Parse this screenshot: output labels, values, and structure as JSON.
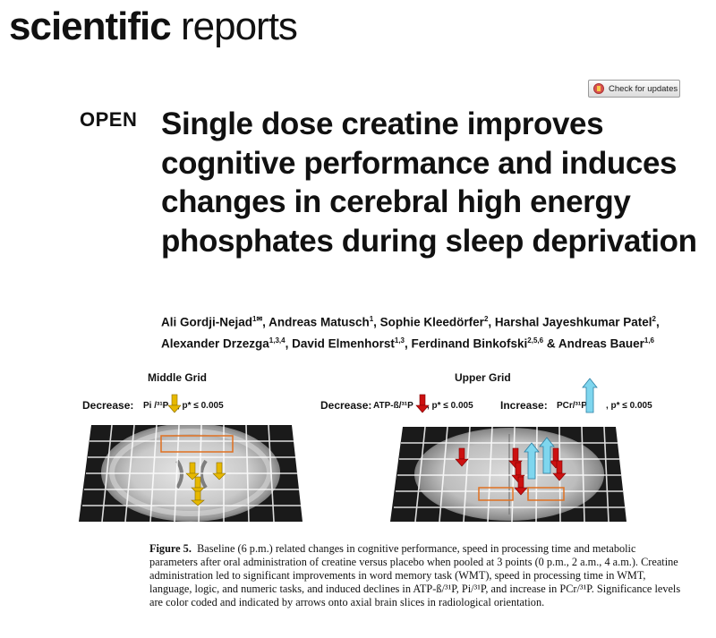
{
  "journal": {
    "bold": "scientific",
    "light": "reports"
  },
  "updates_button": "Check for updates",
  "open_label": "OPEN",
  "title": "Single dose creatine improves cognitive performance and induces changes in cerebral high energy phosphates during sleep deprivation",
  "authors": {
    "line1": [
      {
        "name": "Ali Gordji-Nejad",
        "sup": "1✉"
      },
      {
        "name": ", Andreas Matusch",
        "sup": "1"
      },
      {
        "name": ", Sophie Kleedörfer",
        "sup": "2"
      },
      {
        "name": ", Harshal Jayeshkumar Patel",
        "sup": "2"
      },
      {
        "name": ",",
        "sup": ""
      }
    ],
    "line2": [
      {
        "name": "Alexander Drzezga",
        "sup": "1,3,4"
      },
      {
        "name": ", David Elmenhorst",
        "sup": "1,3"
      },
      {
        "name": ", Ferdinand Binkofski",
        "sup": "2,5,6"
      },
      {
        "name": " & Andreas Bauer",
        "sup": "1,6"
      }
    ]
  },
  "figure": {
    "left_panel": {
      "heading": "Middle Grid",
      "label_decrease": "Decrease:",
      "metabolite": "Pi /³¹P",
      "pvalue": ",  p* ≤ 0.005"
    },
    "right_panel": {
      "heading": "Upper Grid",
      "label_decrease": "Decrease:",
      "metabolite_decrease": "ATP-ß/³¹P",
      "pvalue_decrease": ",  p* ≤ 0.005",
      "label_increase": "Increase:",
      "metabolite_increase": "PCr/³¹P",
      "pvalue_increase": ",  p* ≤ 0.005"
    },
    "colors": {
      "gold_arrow": "#e6b800",
      "red_arrow": "#cc1111",
      "blue_arrow": "#7fd6ee",
      "roi_box": "#e07020"
    }
  },
  "caption": {
    "label": "Figure 5.",
    "text": "Baseline (6 p.m.) related changes in cognitive performance, speed in processing time and metabolic parameters after oral administration of creatine versus placebo when pooled at 3 points (0 p.m., 2 a.m., 4 a.m.). Creatine administration led to significant improvements in word memory task (WMT), speed in processing time in WMT, language, logic, and numeric tasks, and induced declines in ATP-ß/³¹P, Pi/³¹P, and increase in PCr/³¹P. Significance levels are color coded and indicated by arrows onto axial brain slices in radiological orientation."
  }
}
